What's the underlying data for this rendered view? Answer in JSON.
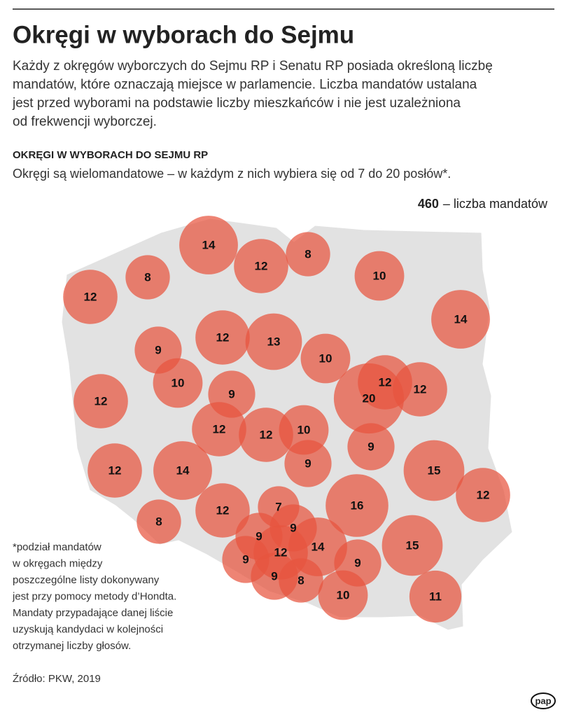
{
  "header": {
    "title": "Okręgi w wyborach do Sejmu",
    "intro": [
      "Każdy z okręgów wyborczych do Sejmu RP i Senatu RP posiada określoną liczbę",
      "mandatów, które oznaczają miejsce w parlamencie. Liczba mandatów ustalana",
      "jest przed wyborami na podstawie liczby mieszkańców i nie jest uzależniona",
      "od frekwencji wyborczej."
    ],
    "section_title": "OKRĘGI W WYBORACH DO SEJMU RP",
    "section_subtitle": "Okręgi są wielomandatowe – w każdym z nich wybiera się od 7 do 20 posłów*."
  },
  "legend": {
    "total": 460,
    "label": "– liczba mandatów"
  },
  "map": {
    "bubbles": [
      14,
      12,
      8,
      8,
      12,
      10,
      14,
      12,
      13,
      9,
      10,
      10,
      9,
      12,
      20,
      12,
      12,
      12,
      12,
      10,
      9,
      9,
      12,
      14,
      15,
      16,
      12,
      12,
      7,
      8,
      9,
      9,
      14,
      15,
      12,
      9,
      9,
      9,
      8,
      10,
      11
    ]
  },
  "footnote": [
    "*podział mandatów",
    "w okręgach między",
    "poszczególne listy dokonywany",
    "jest przy pomocy metody d’Hondta.",
    "Mandaty przypadające danej liście",
    "uzyskują kandydaci w kolejności",
    "otrzymanej liczby głosów."
  ],
  "source": "Źródło: PKW, 2019",
  "logo": "pap"
}
